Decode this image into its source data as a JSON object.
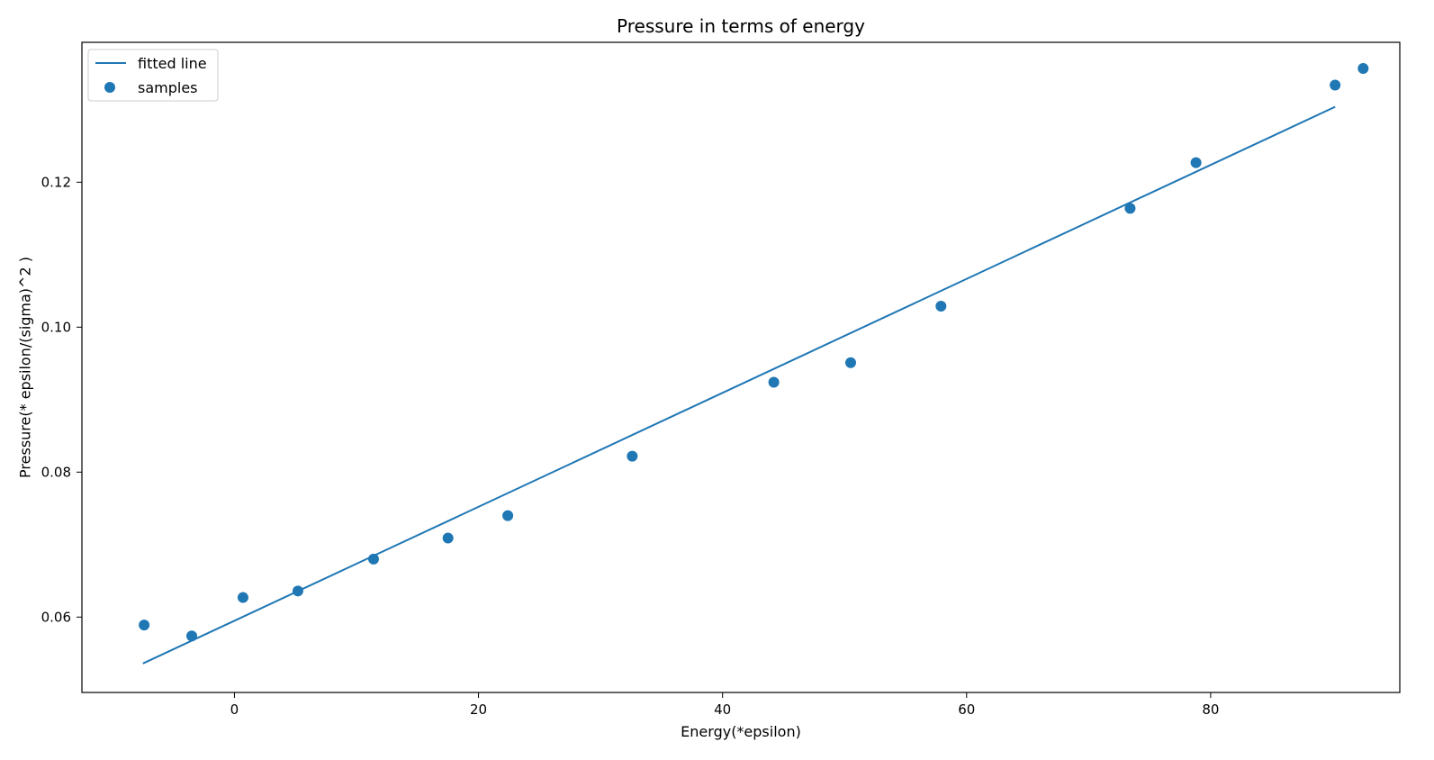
{
  "chart_data": {
    "type": "scatter",
    "title": "Pressure in terms of energy",
    "xlabel": "Energy(*epsilon)",
    "ylabel": "Pressure(*  epsilon/(sigma)^2  )",
    "xlim": [
      -12.5,
      95.5
    ],
    "ylim": [
      0.0496,
      0.1393
    ],
    "xticks": [
      0,
      20,
      40,
      60,
      80
    ],
    "yticks": [
      0.06,
      0.08,
      0.1,
      0.12
    ],
    "xtick_labels": [
      "0",
      "20",
      "40",
      "60",
      "80"
    ],
    "ytick_labels": [
      "0.06",
      "0.08",
      "0.10",
      "0.12"
    ],
    "grid": false,
    "legend_position": "top-left",
    "series": [
      {
        "name": "fitted line",
        "kind": "line",
        "color": "#1f77b4",
        "x": [
          -7.5,
          90.2
        ],
        "y": [
          0.0536,
          0.1304
        ]
      },
      {
        "name": "samples",
        "kind": "scatter",
        "color": "#1f77b4",
        "x": [
          -7.4,
          -3.5,
          0.7,
          5.2,
          11.4,
          17.5,
          22.4,
          32.6,
          44.2,
          50.5,
          57.9,
          73.4,
          78.8,
          90.2,
          92.5
        ],
        "y": [
          0.0589,
          0.0574,
          0.0627,
          0.0636,
          0.068,
          0.0709,
          0.074,
          0.0822,
          0.0924,
          0.0951,
          0.1029,
          0.1164,
          0.1227,
          0.1334,
          0.1357
        ]
      }
    ]
  }
}
